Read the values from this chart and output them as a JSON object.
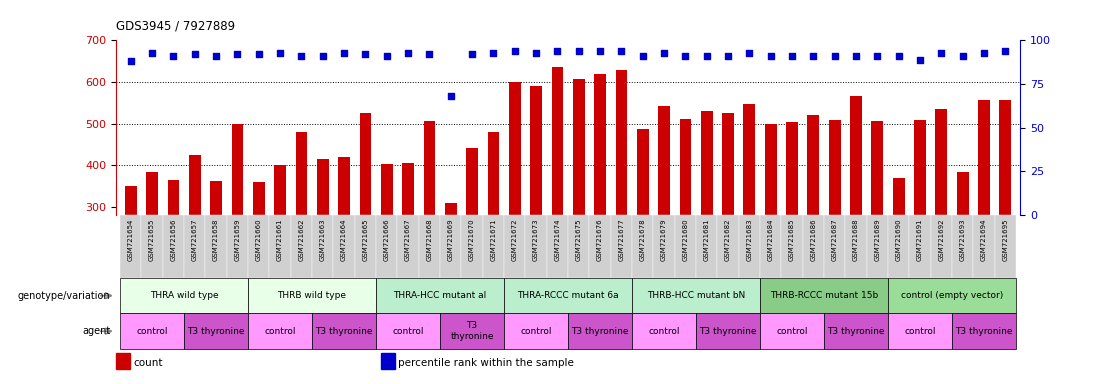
{
  "title": "GDS3945 / 7927889",
  "samples": [
    "GSM721654",
    "GSM721655",
    "GSM721656",
    "GSM721657",
    "GSM721658",
    "GSM721659",
    "GSM721660",
    "GSM721661",
    "GSM721662",
    "GSM721663",
    "GSM721664",
    "GSM721665",
    "GSM721666",
    "GSM721667",
    "GSM721668",
    "GSM721669",
    "GSM721670",
    "GSM721671",
    "GSM721672",
    "GSM721673",
    "GSM721674",
    "GSM721675",
    "GSM721676",
    "GSM721677",
    "GSM721678",
    "GSM721679",
    "GSM721680",
    "GSM721681",
    "GSM721682",
    "GSM721683",
    "GSM721684",
    "GSM721685",
    "GSM721686",
    "GSM721687",
    "GSM721688",
    "GSM721689",
    "GSM721690",
    "GSM721691",
    "GSM721692",
    "GSM721693",
    "GSM721694",
    "GSM721695"
  ],
  "counts": [
    350,
    383,
    365,
    424,
    362,
    500,
    360,
    400,
    479,
    415,
    420,
    525,
    403,
    405,
    505,
    310,
    441,
    480,
    600,
    590,
    635,
    607,
    618,
    628,
    487,
    543,
    511,
    530,
    526,
    548,
    500,
    503,
    520,
    509,
    567,
    507,
    370,
    508,
    534,
    383,
    557,
    557
  ],
  "percentile_ranks": [
    88,
    93,
    91,
    92,
    91,
    92,
    92,
    93,
    91,
    91,
    93,
    92,
    91,
    93,
    92,
    68,
    92,
    93,
    94,
    93,
    94,
    94,
    94,
    94,
    91,
    93,
    91,
    91,
    91,
    93,
    91,
    91,
    91,
    91,
    91,
    91,
    91,
    89,
    93,
    91,
    93,
    94
  ],
  "ylim_left": [
    280,
    700
  ],
  "ylim_right": [
    0,
    100
  ],
  "yticks_left": [
    300,
    400,
    500,
    600,
    700
  ],
  "yticks_right": [
    0,
    25,
    50,
    75,
    100
  ],
  "bar_color": "#cc0000",
  "dot_color": "#0000cc",
  "xtick_bg": "#cccccc",
  "genotype_groups": [
    {
      "label": "THRA wild type",
      "start": 0,
      "end": 5,
      "color": "#e8ffe8"
    },
    {
      "label": "THRB wild type",
      "start": 6,
      "end": 11,
      "color": "#e8ffe8"
    },
    {
      "label": "THRA-HCC mutant al",
      "start": 12,
      "end": 17,
      "color": "#bbeecc"
    },
    {
      "label": "THRA-RCCC mutant 6a",
      "start": 18,
      "end": 23,
      "color": "#bbeecc"
    },
    {
      "label": "THRB-HCC mutant bN",
      "start": 24,
      "end": 29,
      "color": "#bbeecc"
    },
    {
      "label": "THRB-RCCC mutant 15b",
      "start": 30,
      "end": 35,
      "color": "#88cc88"
    },
    {
      "label": "control (empty vector)",
      "start": 36,
      "end": 41,
      "color": "#99dd99"
    }
  ],
  "agent_groups": [
    {
      "label": "control",
      "start": 0,
      "end": 2,
      "color": "#ff99ff"
    },
    {
      "label": "T3 thyronine",
      "start": 3,
      "end": 5,
      "color": "#cc55cc"
    },
    {
      "label": "control",
      "start": 6,
      "end": 8,
      "color": "#ff99ff"
    },
    {
      "label": "T3 thyronine",
      "start": 9,
      "end": 11,
      "color": "#cc55cc"
    },
    {
      "label": "control",
      "start": 12,
      "end": 14,
      "color": "#ff99ff"
    },
    {
      "label": "T3\nthyronine",
      "start": 15,
      "end": 17,
      "color": "#cc55cc"
    },
    {
      "label": "control",
      "start": 18,
      "end": 20,
      "color": "#ff99ff"
    },
    {
      "label": "T3 thyronine",
      "start": 21,
      "end": 23,
      "color": "#cc55cc"
    },
    {
      "label": "control",
      "start": 24,
      "end": 26,
      "color": "#ff99ff"
    },
    {
      "label": "T3 thyronine",
      "start": 27,
      "end": 29,
      "color": "#cc55cc"
    },
    {
      "label": "control",
      "start": 30,
      "end": 32,
      "color": "#ff99ff"
    },
    {
      "label": "T3 thyronine",
      "start": 33,
      "end": 35,
      "color": "#cc55cc"
    },
    {
      "label": "control",
      "start": 36,
      "end": 38,
      "color": "#ff99ff"
    },
    {
      "label": "T3 thyronine",
      "start": 39,
      "end": 41,
      "color": "#cc55cc"
    }
  ],
  "legend_items": [
    {
      "label": "count",
      "color": "#cc0000"
    },
    {
      "label": "percentile rank within the sample",
      "color": "#0000cc"
    }
  ]
}
